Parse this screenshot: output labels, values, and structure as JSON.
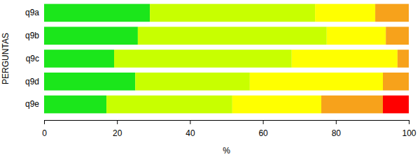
{
  "chart_data": {
    "type": "bar",
    "orientation": "horizontal",
    "stacked": true,
    "categories": [
      "q9a",
      "q9b",
      "q9c",
      "q9d",
      "q9e"
    ],
    "series": [
      {
        "color": "#1be61b",
        "values": [
          29.0,
          25.7,
          19.2,
          25.0,
          17.1
        ]
      },
      {
        "color": "#c8ff00",
        "values": [
          45.3,
          51.8,
          48.7,
          31.4,
          34.5
        ]
      },
      {
        "color": "#ffff00",
        "values": [
          16.5,
          16.2,
          29.0,
          36.5,
          24.4
        ]
      },
      {
        "color": "#f7a21b",
        "values": [
          9.2,
          6.3,
          3.1,
          7.1,
          16.9
        ]
      },
      {
        "color": "#ff0000",
        "values": [
          0,
          0,
          0,
          0,
          7.1
        ]
      }
    ],
    "xlim": [
      0,
      100
    ],
    "xticks": [
      0,
      20,
      40,
      60,
      80,
      100
    ],
    "x_label": "%",
    "y_label": "PERGUNTAS"
  }
}
